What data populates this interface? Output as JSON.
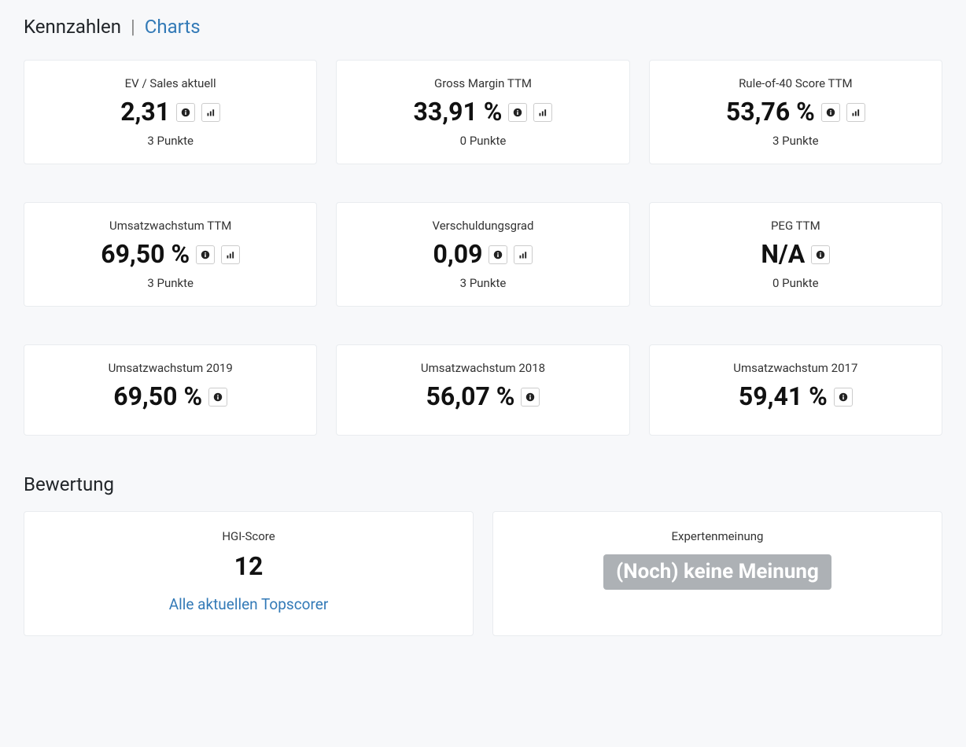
{
  "tabs": {
    "active": "Kennzahlen",
    "separator": "|",
    "link": "Charts"
  },
  "kpis": [
    {
      "label": "EV / Sales aktuell",
      "value": "2,31",
      "points": "3 Punkte",
      "info": true,
      "chart": true
    },
    {
      "label": "Gross Margin TTM",
      "value": "33,91 %",
      "points": "0 Punkte",
      "info": true,
      "chart": true
    },
    {
      "label": "Rule-of-40 Score TTM",
      "value": "53,76 %",
      "points": "3 Punkte",
      "info": true,
      "chart": true
    },
    {
      "label": "Umsatzwachstum TTM",
      "value": "69,50 %",
      "points": "3 Punkte",
      "info": true,
      "chart": true
    },
    {
      "label": "Verschuldungsgrad",
      "value": "0,09",
      "points": "3 Punkte",
      "info": true,
      "chart": true
    },
    {
      "label": "PEG TTM",
      "value": "N/A",
      "points": "0 Punkte",
      "info": true,
      "chart": false
    },
    {
      "label": "Umsatzwachstum 2019",
      "value": "69,50 %",
      "points": "",
      "info": true,
      "chart": false
    },
    {
      "label": "Umsatzwachstum 2018",
      "value": "56,07 %",
      "points": "",
      "info": true,
      "chart": false
    },
    {
      "label": "Umsatzwachstum 2017",
      "value": "59,41 %",
      "points": "",
      "info": true,
      "chart": false
    }
  ],
  "bewertung": {
    "title": "Bewertung",
    "score": {
      "label": "HGI-Score",
      "value": "12",
      "link": "Alle aktuellen Topscorer"
    },
    "expert": {
      "label": "Expertenmeinung",
      "badge": "(Noch) keine Meinung"
    }
  },
  "style": {
    "bg": "#f7f8fa",
    "card_bg": "#ffffff",
    "card_border": "#e9ecef",
    "link_color": "#337ab7",
    "badge_bg": "#adb1b5",
    "badge_fg": "#ffffff",
    "text": "#212529"
  }
}
